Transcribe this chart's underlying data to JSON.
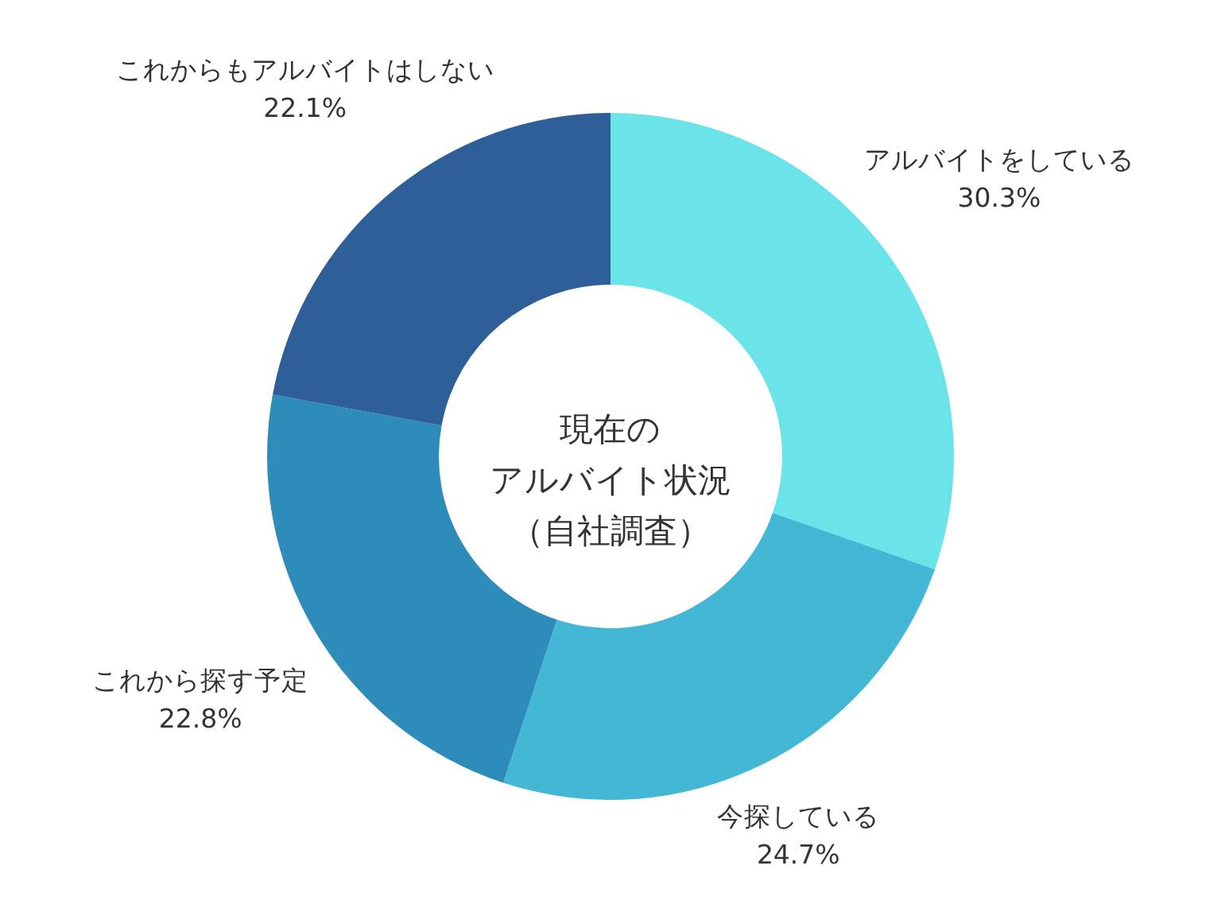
{
  "chart_data": {
    "type": "donut",
    "title": "現在のアルバイト状況（自社調査）",
    "categories": [
      "アルバイトをしている",
      "今探している",
      "これから探す予定",
      "これからもアルバイトはしない"
    ],
    "values": [
      30.3,
      24.7,
      22.8,
      22.1
    ],
    "value_labels": [
      "30.3%",
      "24.7%",
      "22.8%",
      "22.1%"
    ],
    "colors": [
      "#6ae4e8",
      "#42b7d6",
      "#2e8cbb",
      "#2e5f98"
    ]
  }
}
